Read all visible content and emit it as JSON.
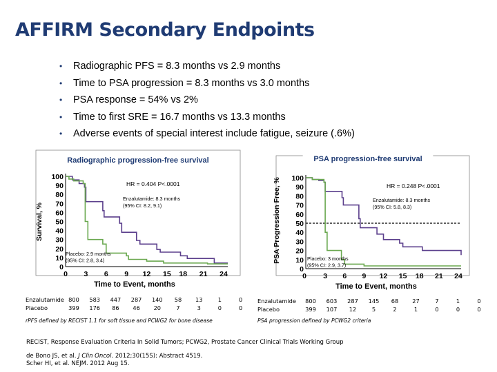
{
  "slide": {
    "title": "AFFIRM Secondary Endpoints",
    "bullets": [
      "Radiographic PFS = 8.3 months vs 2.9 months",
      "Time to PSA progression = 8.3 months vs 3.0 months",
      "PSA response = 54% vs 2%",
      "Time to first SRE = 16.7 months vs 13.3 months",
      "Adverse events of special interest include fatigue, seizure (.6%)"
    ],
    "footnotes": {
      "abbrev_pre": "RECIST, Response Evaluation Criteria In Solid Tumors; PCWG2, Prostate Cancer Clinical Trials Working Group",
      "ref1_a": "de Bono JS, et al. ",
      "ref1_journal": "J Clin Oncol",
      "ref1_b": ". 2012;30(15S): Abstract 4519.",
      "ref2": "Scher HI, et al. NEJM. 2012 Aug 15."
    }
  },
  "chart_data": [
    {
      "type": "line",
      "title": "Radiographic progression-free survival",
      "xlabel": "Time to Event, months",
      "ylabel": "Survival, %",
      "xlim": [
        0,
        24
      ],
      "ylim": [
        0,
        100
      ],
      "xticks": [
        "0",
        "3",
        "6",
        "9",
        "12",
        "15",
        "18",
        "21",
        "24"
      ],
      "yticks": [
        "0",
        "10",
        "20",
        "30",
        "40",
        "50",
        "60",
        "70",
        "80",
        "90",
        "100"
      ],
      "annotations": {
        "hr": "HR = 0.404 P<.0001",
        "enza_1": "Enzalutamide: 8.3 months",
        "enza_2": "(95% CI: 8.2, 9.1)",
        "plac_1": "Placebo: 2.9 months",
        "plac_2": "(95% CI: 2.8, 3.4)"
      },
      "series": [
        {
          "name": "Enzalutamide",
          "color": "#5b3f8c",
          "x": [
            0,
            1,
            2,
            2.8,
            3,
            5.5,
            5.7,
            8,
            8.3,
            10.5,
            11,
            13.5,
            14,
            17,
            18,
            22,
            24
          ],
          "y": [
            100,
            96,
            92,
            88,
            72,
            62,
            55,
            48,
            38,
            29,
            25,
            19,
            16,
            12,
            9,
            4,
            4
          ]
        },
        {
          "name": "Placebo",
          "color": "#6aa84f",
          "x": [
            0,
            0.5,
            1.2,
            2.6,
            2.9,
            3.3,
            5.5,
            6,
            9,
            9.3,
            12,
            14,
            14.5,
            18,
            21,
            24
          ],
          "y": [
            100,
            97,
            95,
            92,
            50,
            30,
            25,
            15,
            12,
            8,
            6,
            6,
            4,
            4,
            3,
            3
          ]
        }
      ],
      "at_risk": {
        "rows": [
          {
            "label": "Enzalutamide",
            "values": [
              "800",
              "583",
              "447",
              "287",
              "140",
              "58",
              "13",
              "1",
              "0"
            ]
          },
          {
            "label": "Placebo",
            "values": [
              "399",
              "176",
              "86",
              "46",
              "20",
              "7",
              "3",
              "0",
              "0"
            ]
          }
        ],
        "note": "rPFS defined by RECIST 1.1 for soft tissue and PCWG2 for bone disease"
      }
    },
    {
      "type": "line",
      "title": "PSA progression-free survival",
      "xlabel": "Time to Event, months",
      "ylabel": "PSA Progression Free, %",
      "xlim": [
        0,
        24
      ],
      "ylim": [
        0,
        100
      ],
      "xticks": [
        "0",
        "3",
        "6",
        "9",
        "12",
        "15",
        "18",
        "21",
        "24"
      ],
      "yticks": [
        "0",
        "10",
        "20",
        "30",
        "40",
        "50",
        "60",
        "70",
        "80",
        "90",
        "100"
      ],
      "annotations": {
        "hr": "HR = 0.248 P<.0001",
        "enza_1": "Enzalutamide: 8.3 months",
        "enza_2": "(95% CI: 5.8, 8.3)",
        "plac_1": "Placebo: 3 months",
        "plac_2": "(95% CI: 2.9, 3.7)"
      },
      "series": [
        {
          "name": "Enzalutamide",
          "color": "#5b3f8c",
          "x": [
            0,
            1,
            2,
            2.8,
            3,
            5.6,
            5.8,
            8.2,
            8.4,
            11,
            12,
            14.5,
            15,
            18,
            24
          ],
          "y": [
            100,
            98,
            97,
            95,
            85,
            78,
            70,
            55,
            45,
            38,
            32,
            28,
            24,
            20,
            15
          ]
        },
        {
          "name": "Placebo",
          "color": "#6aa84f",
          "x": [
            0,
            1,
            2.8,
            3,
            3.3,
            5.5,
            6,
            9,
            24
          ],
          "y": [
            100,
            98,
            95,
            40,
            20,
            10,
            5,
            3,
            3
          ]
        }
      ],
      "median_line": 50,
      "at_risk": {
        "rows": [
          {
            "label": "Enzalutamide",
            "values": [
              "800",
              "603",
              "287",
              "145",
              "68",
              "27",
              "7",
              "1",
              "0"
            ]
          },
          {
            "label": "Placebo",
            "values": [
              "399",
              "107",
              "12",
              "5",
              "2",
              "1",
              "0",
              "0",
              "0"
            ]
          }
        ],
        "note": "PSA progression defined by PCWG2 criteria"
      }
    }
  ]
}
